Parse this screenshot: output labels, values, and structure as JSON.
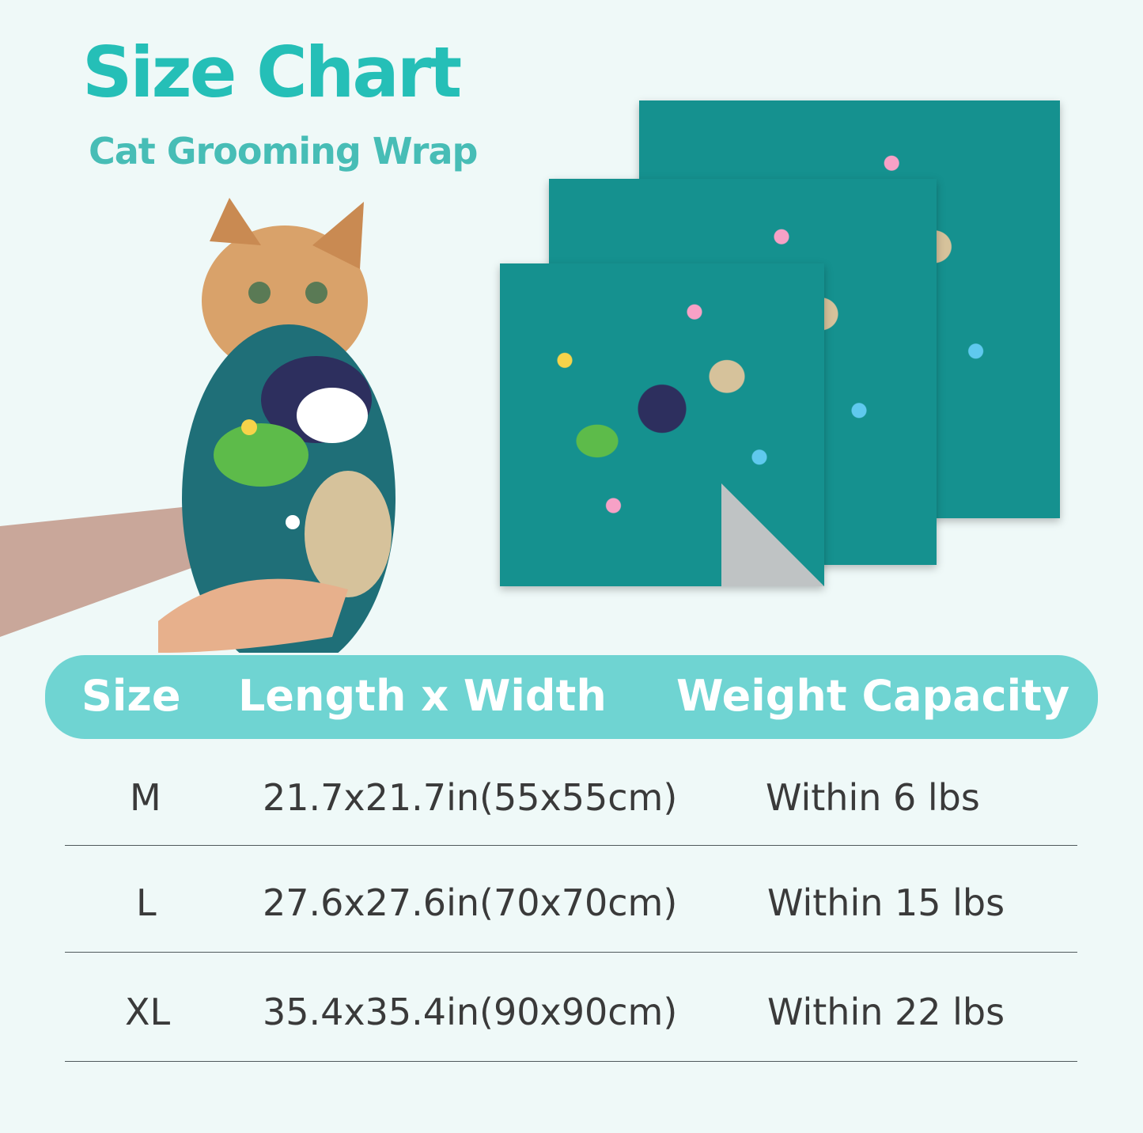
{
  "title": "Size Chart",
  "subtitle": "Cat Grooming Wrap",
  "colors": {
    "accent": "#25bfb7",
    "header_bg": "#6fd4d2",
    "background": "#eff9f8",
    "text": "#3a3a3a",
    "blanket": "#15918f"
  },
  "table": {
    "headers": [
      "Size",
      "Length x Width",
      "Weight Capacity"
    ],
    "rows": [
      {
        "size": "M",
        "dimensions": "21.7x21.7in(55x55cm)",
        "weight": "Within 6 lbs"
      },
      {
        "size": "L",
        "dimensions": "27.6x27.6in(70x70cm)",
        "weight": "Within 15 lbs"
      },
      {
        "size": "XL",
        "dimensions": "35.4x35.4in(90x90cm)",
        "weight": "Within 22 lbs"
      }
    ]
  }
}
